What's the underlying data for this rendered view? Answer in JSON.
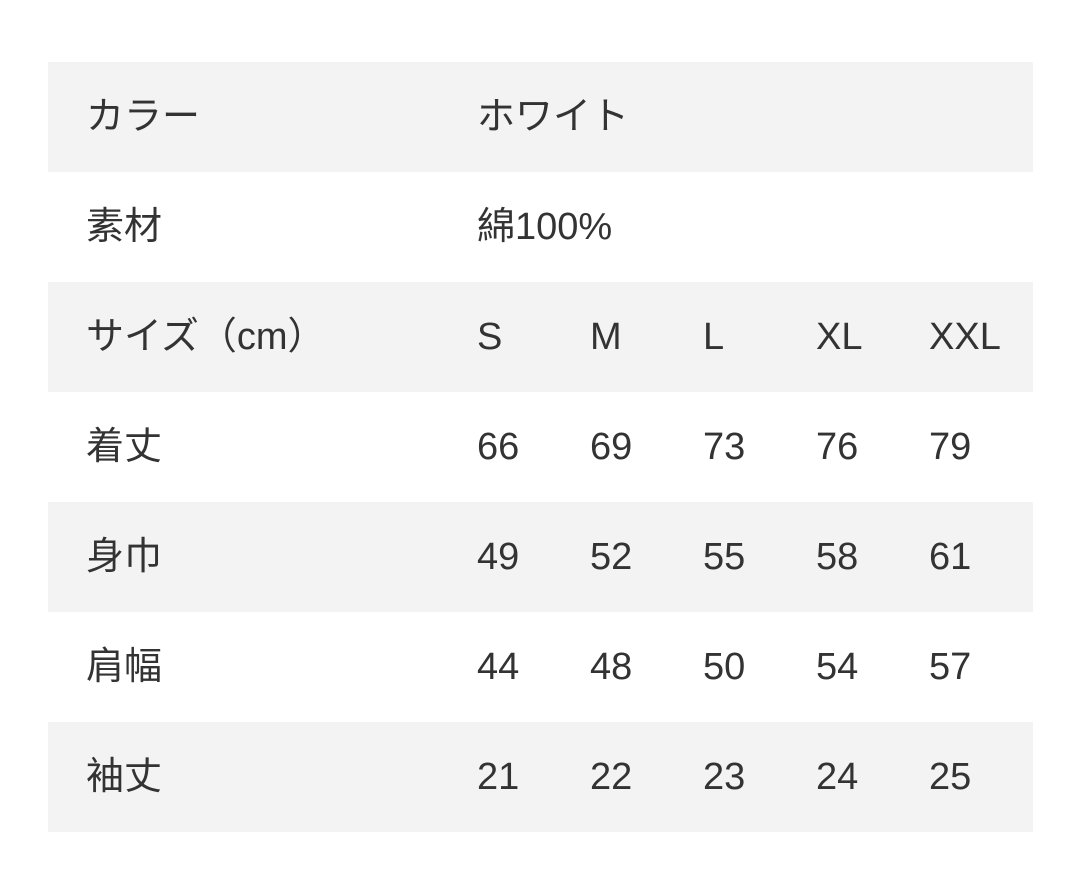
{
  "table": {
    "stripe_color": "#f3f3f3",
    "text_color": "#333333",
    "background_color": "#ffffff",
    "color": {
      "label": "カラー",
      "value": "ホワイト"
    },
    "material": {
      "label": "素材",
      "value": "綿100%"
    },
    "size_header": {
      "label": "サイズ（cm）",
      "columns": [
        "S",
        "M",
        "L",
        "XL",
        "XXL"
      ]
    },
    "measurements": [
      {
        "label": "着丈",
        "values": [
          "66",
          "69",
          "73",
          "76",
          "79"
        ]
      },
      {
        "label": "身巾",
        "values": [
          "49",
          "52",
          "55",
          "58",
          "61"
        ]
      },
      {
        "label": "肩幅",
        "values": [
          "44",
          "48",
          "50",
          "54",
          "57"
        ]
      },
      {
        "label": "袖丈",
        "values": [
          "21",
          "22",
          "23",
          "24",
          "25"
        ]
      }
    ]
  }
}
